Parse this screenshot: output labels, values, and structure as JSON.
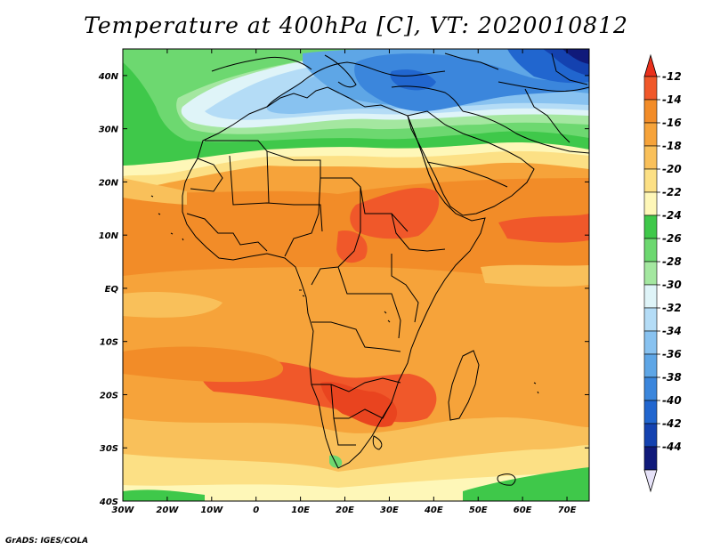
{
  "title": "Temperature at 400hPa [C], VT: 2020010812",
  "credit": "GrADS: IGES/COLA",
  "map": {
    "lon_range": [
      -30,
      75
    ],
    "lat_range": [
      -40,
      45
    ],
    "lon_ticks": [
      {
        "lon": -30,
        "label": "30W"
      },
      {
        "lon": -20,
        "label": "20W"
      },
      {
        "lon": -10,
        "label": "10W"
      },
      {
        "lon": 0,
        "label": "0"
      },
      {
        "lon": 10,
        "label": "10E"
      },
      {
        "lon": 20,
        "label": "20E"
      },
      {
        "lon": 30,
        "label": "30E"
      },
      {
        "lon": 40,
        "label": "40E"
      },
      {
        "lon": 50,
        "label": "50E"
      },
      {
        "lon": 60,
        "label": "60E"
      },
      {
        "lon": 70,
        "label": "70E"
      }
    ],
    "lat_ticks": [
      {
        "lat": 40,
        "label": "40N"
      },
      {
        "lat": 30,
        "label": "30N"
      },
      {
        "lat": 20,
        "label": "20N"
      },
      {
        "lat": 10,
        "label": "10N"
      },
      {
        "lat": 0,
        "label": "EQ"
      },
      {
        "lat": -10,
        "label": "10S"
      },
      {
        "lat": -20,
        "label": "20S"
      },
      {
        "lat": -30,
        "label": "30S"
      },
      {
        "lat": -40,
        "label": "40S"
      }
    ]
  },
  "colorbar": {
    "levels": [
      "-12",
      "-14",
      "-16",
      "-18",
      "-20",
      "-22",
      "-24",
      "-26",
      "-28",
      "-30",
      "-32",
      "-34",
      "-36",
      "-38",
      "-40",
      "-42",
      "-44"
    ],
    "colors": [
      "#f0582a",
      "#f28c28",
      "#f6a33a",
      "#f9c05a",
      "#fce085",
      "#fef7b8",
      "#3fc84a",
      "#6dd870",
      "#a4e7a0",
      "#dff4f8",
      "#b4dcf6",
      "#88c2f0",
      "#5ea6e6",
      "#3b86dc",
      "#2166cf",
      "#1442b0",
      "#101a7a"
    ],
    "top_color": "#e9301c",
    "bottom_color": "#e6e2f8"
  }
}
